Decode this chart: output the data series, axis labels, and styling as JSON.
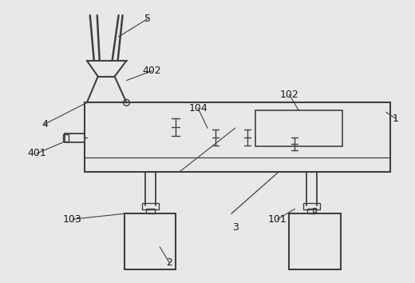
{
  "bg_color": "#e8e8e8",
  "line_color": "#404040",
  "label_color": "#1a1a1a",
  "fig_width": 5.2,
  "fig_height": 3.54,
  "dpi": 100
}
